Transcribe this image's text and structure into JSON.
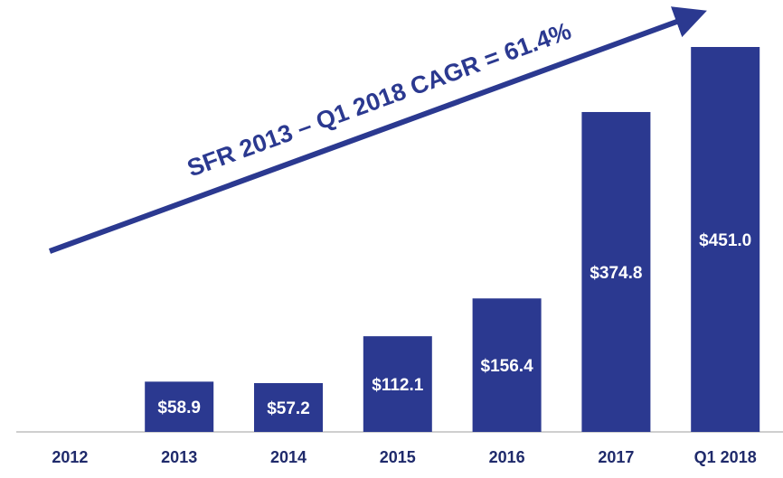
{
  "chart_data": {
    "type": "bar",
    "annotation": "SFR 2013 – Q1 2018 CAGR = 61.4%",
    "categories": [
      "2012",
      "2013",
      "2014",
      "2015",
      "2016",
      "2017",
      "Q1 2018"
    ],
    "values": [
      null,
      58.9,
      57.2,
      112.1,
      156.4,
      374.8,
      451.0
    ],
    "value_labels": [
      null,
      "$58.9",
      "$57.2",
      "$112.1",
      "$156.4",
      "$374.8",
      "$451.0"
    ],
    "color": "#2b3990"
  }
}
